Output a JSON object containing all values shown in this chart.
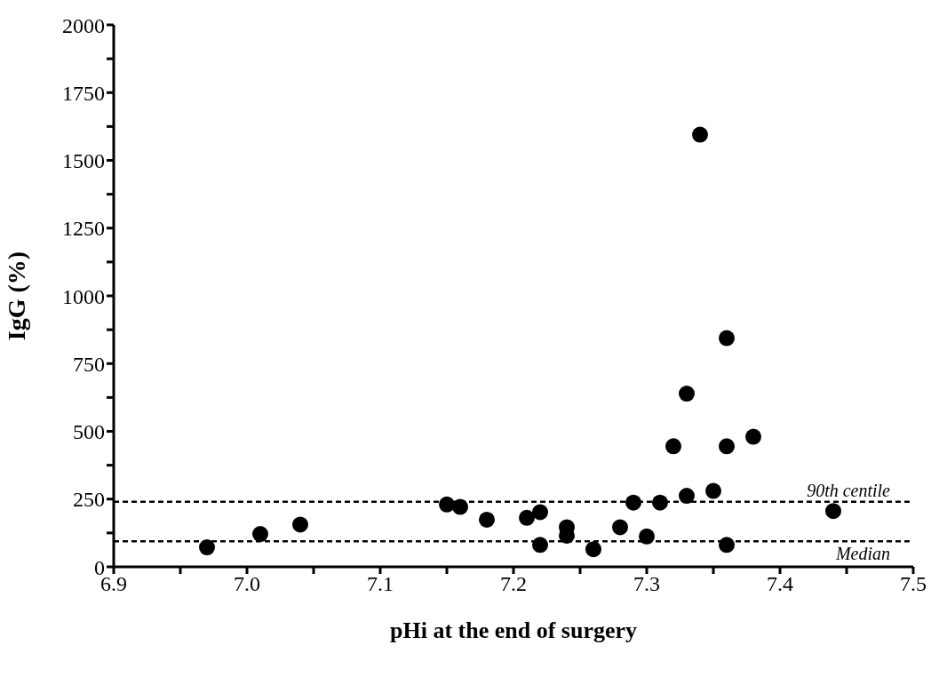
{
  "chart_data": {
    "type": "scatter",
    "xlabel": "pHi at the end of surgery",
    "ylabel": "IgG (%)",
    "x": [
      6.97,
      7.01,
      7.04,
      7.15,
      7.16,
      7.18,
      7.21,
      7.22,
      7.22,
      7.24,
      7.24,
      7.26,
      7.28,
      7.29,
      7.3,
      7.31,
      7.33,
      7.32,
      7.33,
      7.34,
      7.35,
      7.36,
      7.36,
      7.36,
      7.38,
      7.44
    ],
    "values": [
      72,
      121,
      156,
      230,
      221,
      174,
      181,
      202,
      81,
      146,
      115,
      65,
      146,
      237,
      112,
      237,
      262,
      445,
      639,
      1595,
      280,
      844,
      445,
      81,
      480,
      206
    ],
    "color": "#000000",
    "marker": "circle",
    "xlim": [
      6.9,
      7.5
    ],
    "xticks": [
      6.9,
      {
        "value": 6.95,
        "label": null
      },
      {
        "value": 7.0,
        "label": "7.0"
      },
      {
        "value": 7.05,
        "label": null
      },
      7.1,
      {
        "value": 7.15,
        "label": null
      },
      7.2,
      {
        "value": 7.25,
        "label": null
      },
      7.3,
      {
        "value": 7.35,
        "label": null
      },
      7.4,
      {
        "value": 7.45,
        "label": null
      },
      7.5
    ],
    "ylim": [
      0,
      2000
    ],
    "yticks": [
      0,
      {
        "value": 125,
        "label": null
      },
      250,
      {
        "value": 375,
        "label": null
      },
      500,
      {
        "value": 625,
        "label": null
      },
      750,
      {
        "value": 875,
        "label": null
      },
      1000,
      {
        "value": 1125,
        "label": null
      },
      1250,
      {
        "value": 1375,
        "label": null
      },
      1500,
      {
        "value": 1625,
        "label": null
      },
      1750,
      {
        "value": 1875,
        "label": null
      },
      2000
    ],
    "grid": false,
    "legend": false,
    "ref_lines": [
      {
        "axis": "y",
        "value": 240,
        "label": "90th centile",
        "color": "#000000",
        "line_style": "dashed"
      },
      {
        "axis": "y",
        "value": 94,
        "label": "Median",
        "color": "#000000",
        "line_style": "dashed"
      }
    ]
  }
}
